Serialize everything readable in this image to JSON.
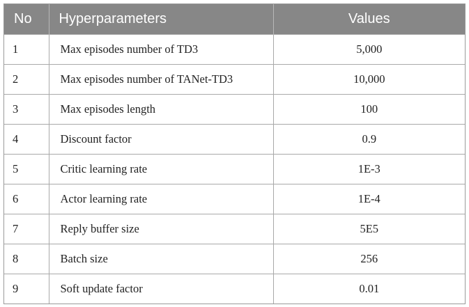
{
  "table": {
    "headers": [
      "No",
      "Hyperparameters",
      "Values"
    ],
    "rows": [
      {
        "no": "1",
        "name": "Max episodes number of TD3",
        "value": "5,000"
      },
      {
        "no": "2",
        "name": "Max episodes number of TANet-TD3",
        "value": "10,000"
      },
      {
        "no": "3",
        "name": "Max episodes length",
        "value": "100"
      },
      {
        "no": "4",
        "name": "Discount factor",
        "value": "0.9"
      },
      {
        "no": "5",
        "name": "Critic learning rate",
        "value": "1E-3"
      },
      {
        "no": "6",
        "name": "Actor learning rate",
        "value": "1E-4"
      },
      {
        "no": "7",
        "name": "Reply buffer size",
        "value": "5E5"
      },
      {
        "no": "8",
        "name": "Batch size",
        "value": "256"
      },
      {
        "no": "9",
        "name": "Soft update factor",
        "value": "0.01"
      }
    ]
  },
  "colors": {
    "header_bg": "#878787",
    "header_text": "#ffffff",
    "grid_line": "#a9a9a9"
  }
}
